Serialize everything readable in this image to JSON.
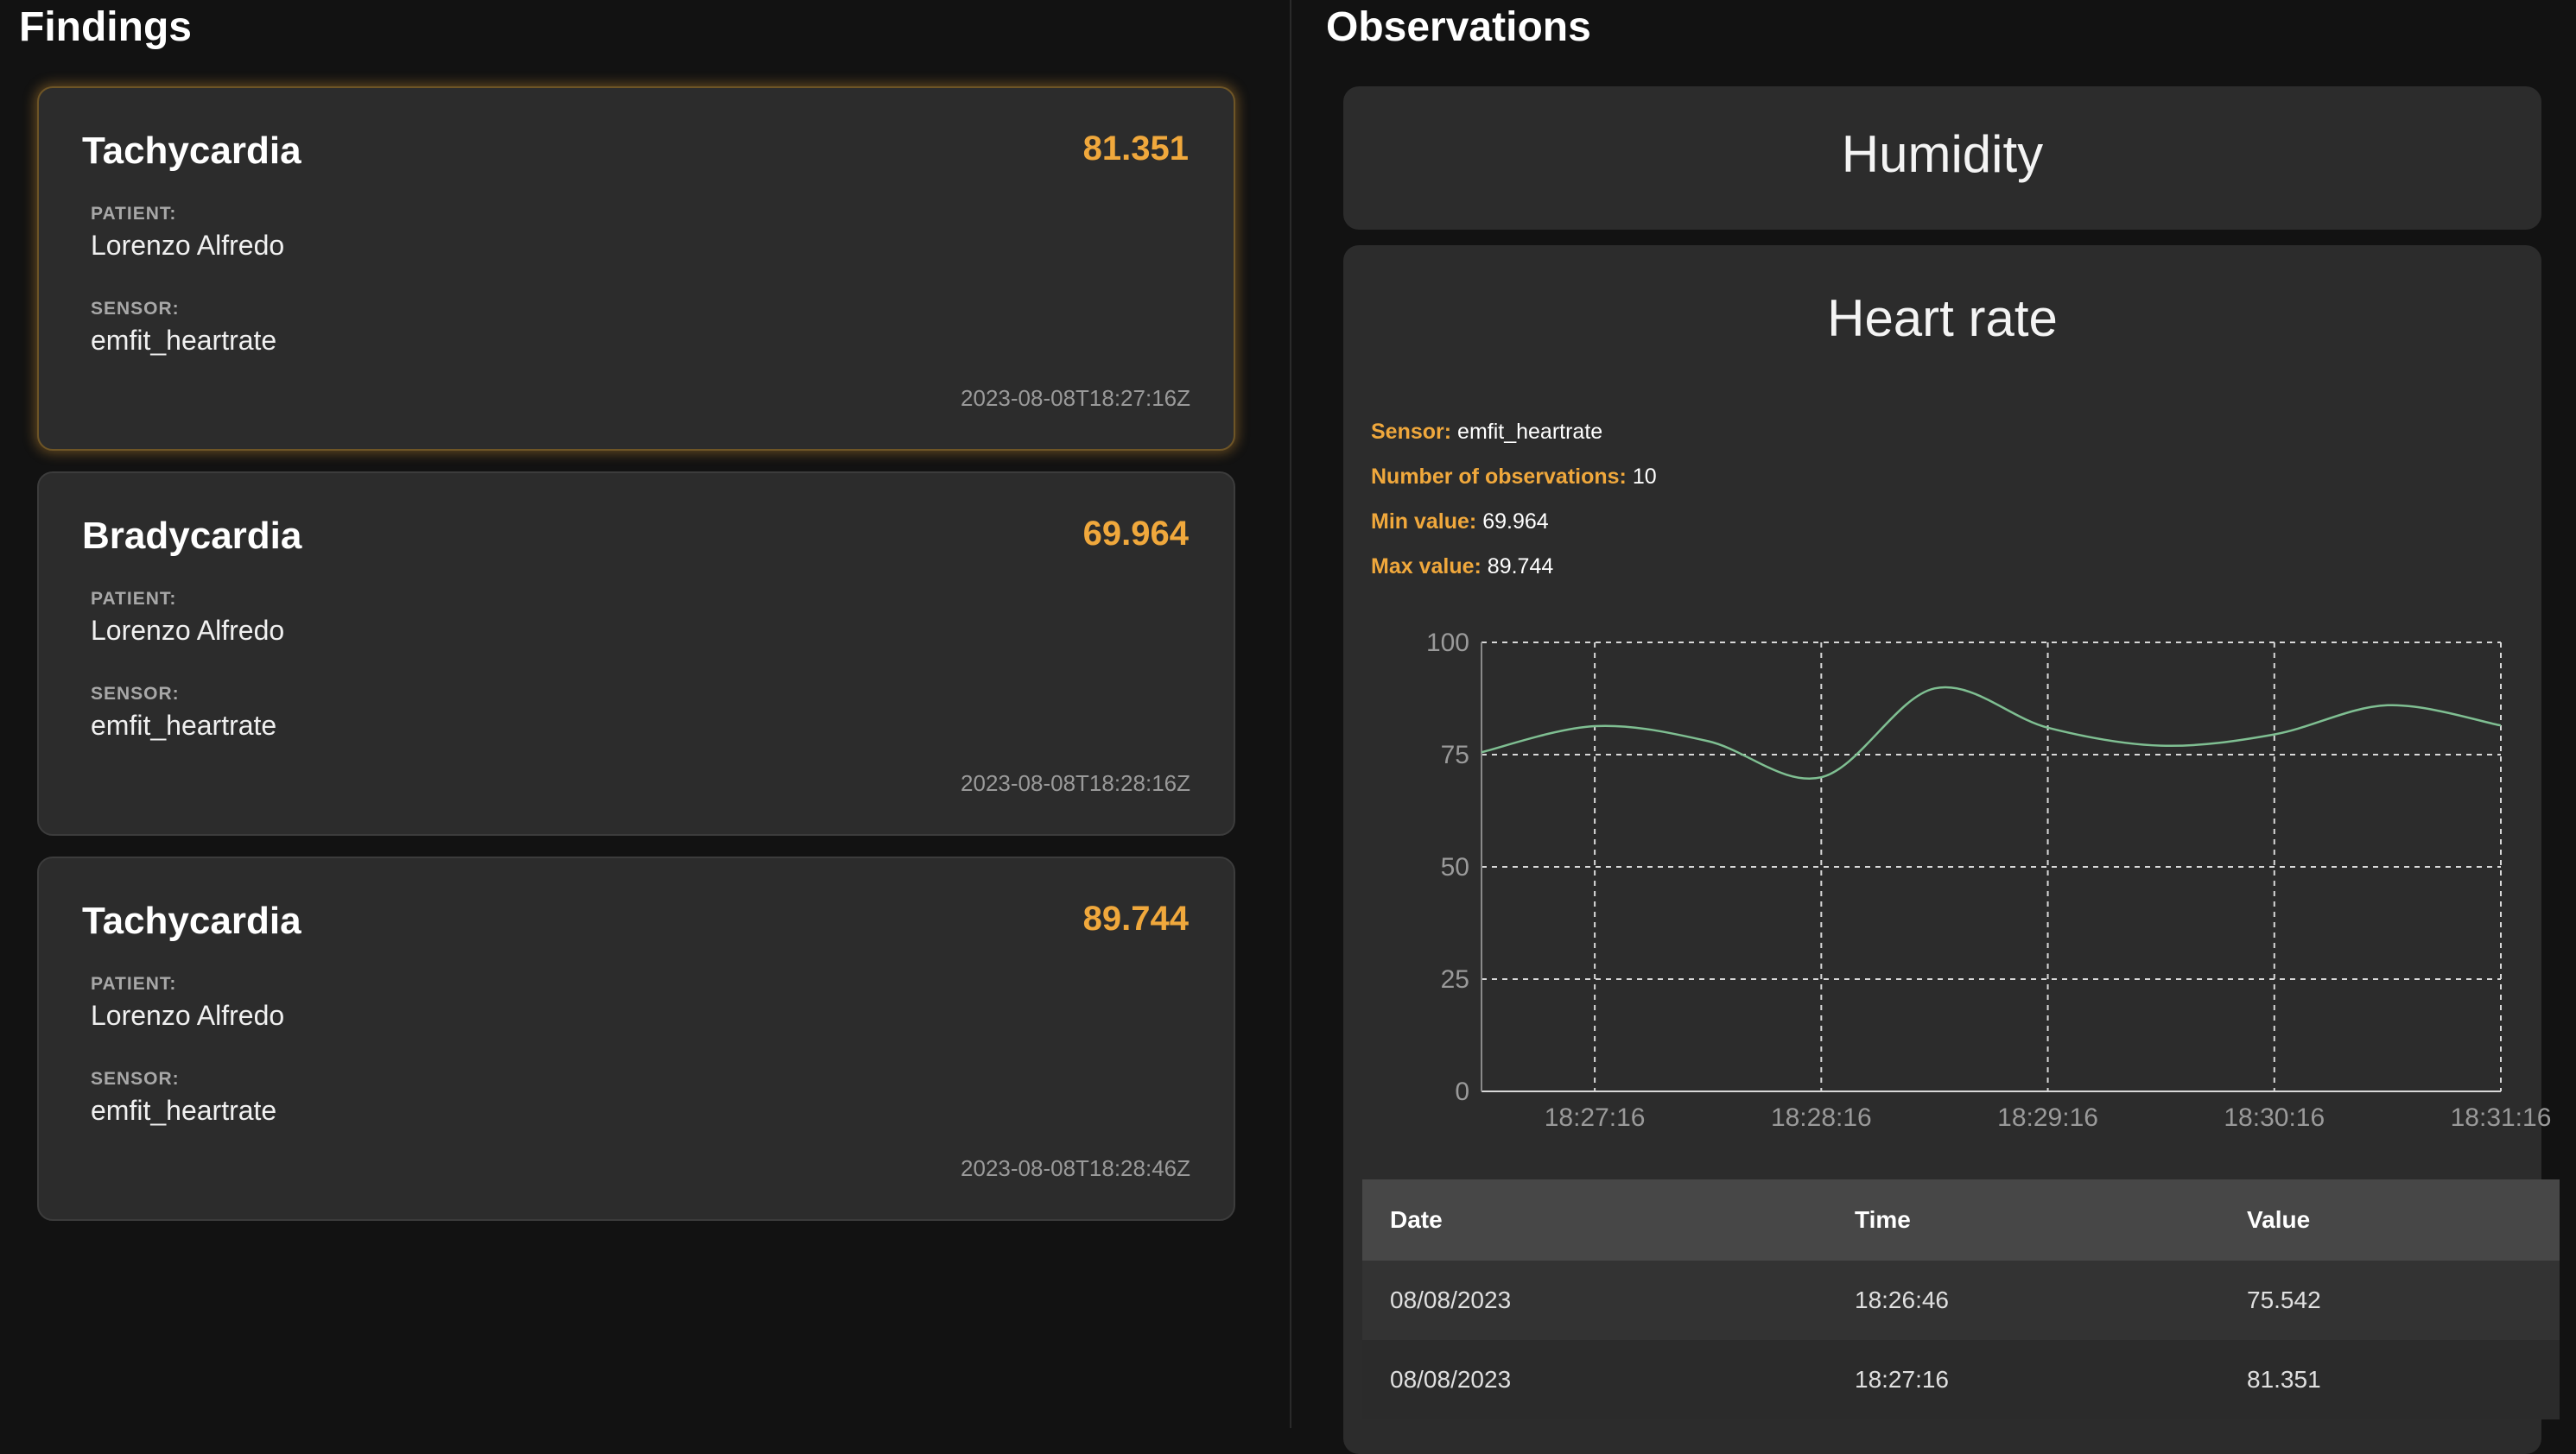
{
  "findings": {
    "title": "Findings",
    "patient_label": "PATIENT:",
    "sensor_label": "SENSOR:",
    "cards": [
      {
        "title": "Tachycardia",
        "value": "81.351",
        "patient": "Lorenzo Alfredo",
        "sensor": "emfit_heartrate",
        "timestamp": "2023-08-08T18:27:16Z"
      },
      {
        "title": "Bradycardia",
        "value": "69.964",
        "patient": "Lorenzo Alfredo",
        "sensor": "emfit_heartrate",
        "timestamp": "2023-08-08T18:28:16Z"
      },
      {
        "title": "Tachycardia",
        "value": "89.744",
        "patient": "Lorenzo Alfredo",
        "sensor": "emfit_heartrate",
        "timestamp": "2023-08-08T18:28:46Z"
      }
    ]
  },
  "observations": {
    "title": "Observations",
    "humidity_title": "Humidity",
    "heart": {
      "title": "Heart rate",
      "stats": {
        "sensor_label": "Sensor:",
        "sensor": "emfit_heartrate",
        "count_label": "Number of observations:",
        "count": "10",
        "min_label": "Min value:",
        "min": "69.964",
        "max_label": "Max value:",
        "max": "89.744"
      }
    },
    "table": {
      "headers": [
        "Date",
        "Time",
        "Value"
      ],
      "rows": [
        [
          "08/08/2023",
          "18:26:46",
          "75.542"
        ],
        [
          "08/08/2023",
          "18:27:16",
          "81.351"
        ]
      ]
    }
  },
  "chart_data": {
    "type": "line",
    "x": [
      "18:26:46",
      "18:27:16",
      "18:27:46",
      "18:28:16",
      "18:28:46",
      "18:29:16",
      "18:29:46",
      "18:30:16",
      "18:30:46",
      "18:31:16"
    ],
    "values": [
      75.542,
      81.351,
      78,
      69.964,
      89.744,
      81,
      77,
      79.5,
      86,
      81.5
    ],
    "x_ticks": [
      "18:27:16",
      "18:28:16",
      "18:29:16",
      "18:30:16",
      "18:31:16"
    ],
    "y_ticks": [
      0,
      25,
      50,
      75,
      100
    ],
    "ylim": [
      0,
      100
    ],
    "grid": true,
    "line_color": "#7fbf92"
  }
}
